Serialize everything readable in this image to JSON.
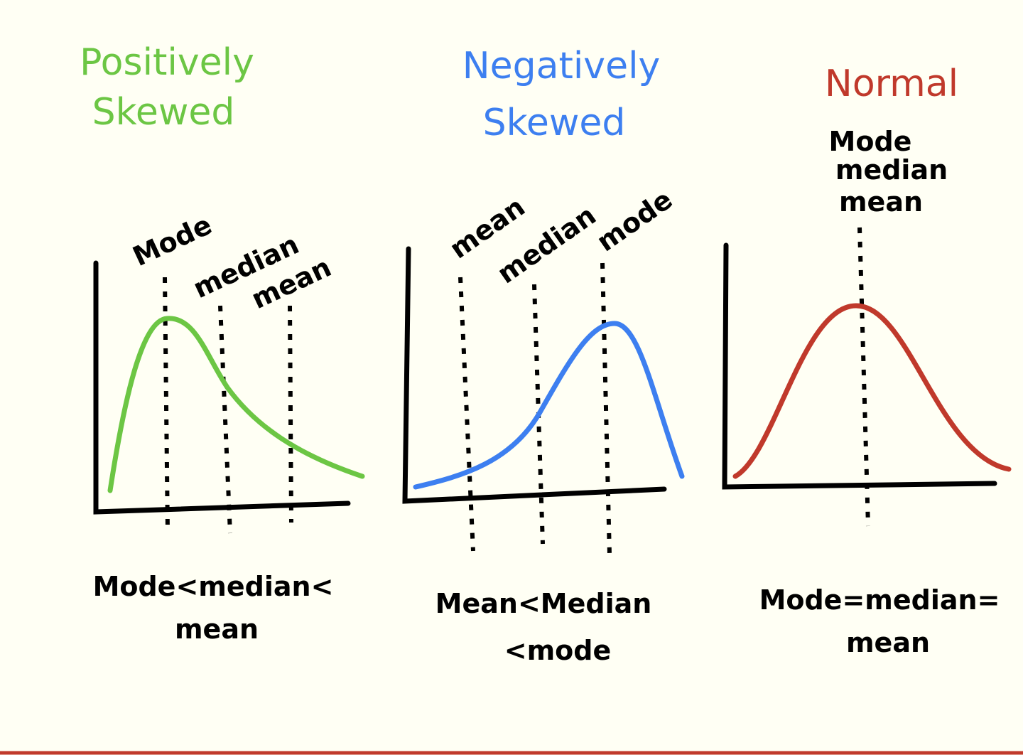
{
  "panels": [
    {
      "title_lines": [
        "Positively",
        "Skewed"
      ],
      "labels": [
        "Mode",
        "median",
        "mean"
      ],
      "caption_lines": [
        "Mode<median<",
        "mean"
      ]
    },
    {
      "title_lines": [
        "Negatively",
        "Skewed"
      ],
      "labels": [
        "mean",
        "median",
        "mode"
      ],
      "caption_lines": [
        "Mean<Median",
        "<mode"
      ]
    },
    {
      "title_lines": [
        "Normal"
      ],
      "labels": [
        "Mode",
        "median",
        "mean"
      ],
      "caption_lines": [
        "Mode=median=",
        "mean"
      ]
    }
  ]
}
